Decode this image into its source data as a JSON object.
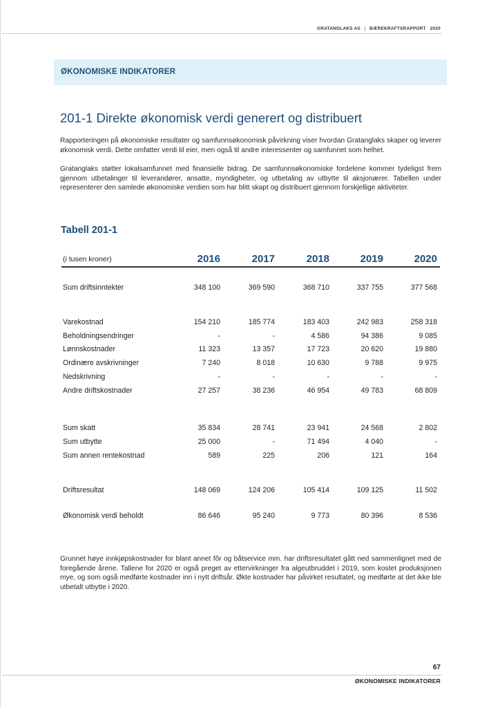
{
  "header": {
    "company": "GRATANGLAKS AS",
    "report": "BÆREKRAFTSRAPPORT",
    "year": "2020"
  },
  "section_band": "ØKONOMISKE INDIKATORER",
  "heading": "201-1 Direkte økonomisk verdi generert og distribuert",
  "paragraphs": [
    "Rapporteringen på økonomiske resultater og samfunnsøkonomisk påvirkning viser hvordan Gratanglaks skaper og leverer økonomisk verdi.  Dette omfatter verdi til eier, men også til andre interessenter og samfunnet som helhet.",
    "Gratanglaks støtter lokalsamfunnet med finansielle bidrag. De samfunnsøkonomiske fordelene kommer tydeligst frem gjennom utbetalinger til leverandører, ansatte, myndigheter, og utbetaling av utbytte til aksjonærer. Tabellen under representerer den samlede økonomiske verdien som har blitt skapt og distribuert gjennom forskjellige aktiviteter.",
    "Grunnet høye innkjøpskostnader for blant annet fôr og båtservice mm. har driftsresultatet gått ned sammenlignet med de foregående årene. Tallene for 2020 er også preget av ettervirkninger fra algeutbruddet i 2019, som kostet produksjonen mye, og som også medførte kostnader inn i nytt driftsår. Økte kostnader har påvirket resultatet, og medførte at det ikke ble utbetalt utbytte i 2020."
  ],
  "table": {
    "title": "Tabell 201-1",
    "unit_label": "(i tusen kroner)",
    "years": [
      "2016",
      "2017",
      "2018",
      "2019",
      "2020"
    ],
    "rows": [
      {
        "label": "Sum driftsinntekter",
        "values": [
          "348 100",
          "369 590",
          "368 710",
          "337 755",
          "377 568"
        ]
      },
      {
        "label": "Varekostnad",
        "values": [
          "154 210",
          "185 774",
          "183 403",
          "242 983",
          "258 318"
        ]
      },
      {
        "label": "Beholdningsendringer",
        "values": [
          "-",
          "-",
          "4 586",
          "94 386",
          "9 085"
        ]
      },
      {
        "label": "Lønnskostnader",
        "values": [
          "11 323",
          "13 357",
          "17 723",
          "20 620",
          "19 880"
        ]
      },
      {
        "label": "Ordinære avskrivninger",
        "values": [
          "7 240",
          "8 018",
          "10 630",
          "9 788",
          "9 975"
        ]
      },
      {
        "label": "Nedskrivning",
        "values": [
          "-",
          "-",
          "-",
          "-",
          "-"
        ]
      },
      {
        "label": "Andre driftskostnader",
        "values": [
          "27 257",
          "38 236",
          "46 954",
          "49 783",
          "68 809"
        ]
      },
      {
        "label": "Sum skatt",
        "values": [
          "35 834",
          "28 741",
          "23 941",
          "24 568",
          "2 802"
        ]
      },
      {
        "label": "Sum utbytte",
        "values": [
          "25 000",
          "-",
          "71 494",
          "4 040",
          "-"
        ]
      },
      {
        "label": "Sum annen rentekostnad",
        "values": [
          "589",
          "225",
          "206",
          "121",
          "164"
        ]
      },
      {
        "label": "Driftsresultat",
        "values": [
          "148 069",
          "124 206",
          "105 414",
          "109 125",
          "11 502"
        ]
      },
      {
        "label": "Økonomisk verdi beholdt",
        "values": [
          "86 646",
          "95 240",
          "9 773",
          "80 396",
          "8 536"
        ]
      }
    ]
  },
  "footer": {
    "page_number": "67",
    "label": "ØKONOMISKE INDIKATORER"
  }
}
